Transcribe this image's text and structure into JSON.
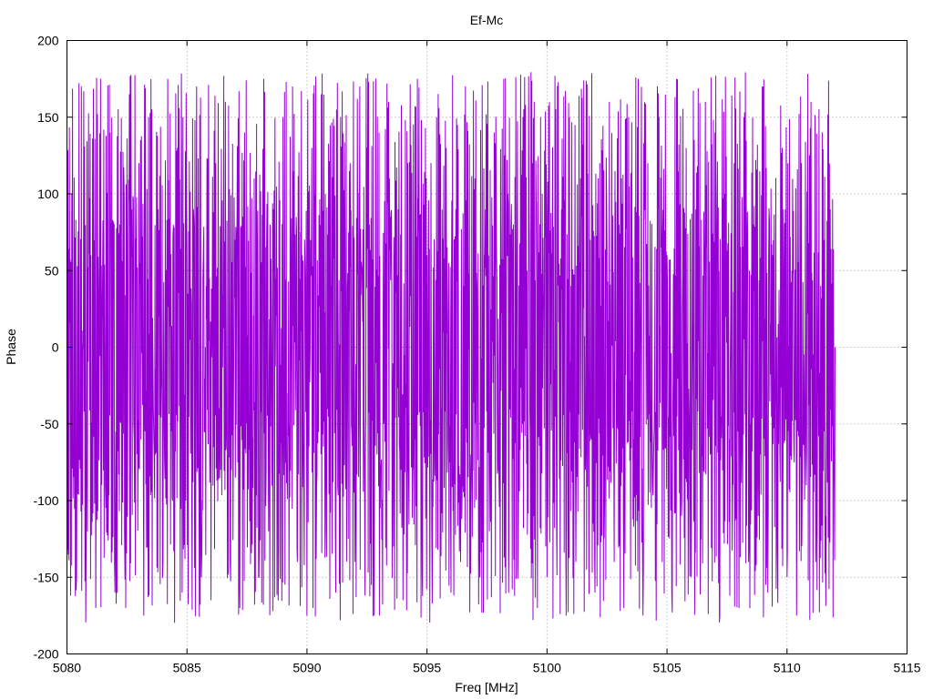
{
  "chart_data": {
    "type": "line",
    "title": "Ef-Mc",
    "xlabel": "Freq [MHz]",
    "ylabel": "Phase",
    "xlim": [
      5080,
      5115
    ],
    "ylim": [
      -200,
      200
    ],
    "xticks": [
      5080,
      5085,
      5090,
      5095,
      5100,
      5105,
      5110,
      5115
    ],
    "yticks": [
      -200,
      -150,
      -100,
      -50,
      0,
      50,
      100,
      150,
      200
    ],
    "grid": true,
    "series": [
      {
        "color": "#9400d3",
        "x_range": [
          5080,
          5112
        ],
        "description_points": "dense wrapped phase oscillating between about -180 and 180",
        "x": [
          5080.0,
          5080.2,
          5080.4,
          5080.6,
          5080.8,
          5081.0,
          5081.2,
          5081.4,
          5081.6,
          5081.8,
          5082.0,
          5082.2,
          5082.4,
          5082.6,
          5082.8,
          5083.0,
          5083.2,
          5083.4,
          5083.6,
          5083.8,
          5084.0,
          5084.2,
          5084.4,
          5084.6,
          5084.8,
          5085.0,
          5085.2,
          5085.4,
          5085.6,
          5085.8,
          5086.0,
          5086.2,
          5086.4,
          5086.6,
          5086.8,
          5087.0,
          5087.2,
          5087.4,
          5087.6,
          5087.8,
          5088.0,
          5088.2,
          5088.4,
          5088.6,
          5088.8,
          5089.0,
          5089.2,
          5089.4,
          5089.6,
          5089.8,
          5090.0,
          5090.2,
          5090.4,
          5090.6,
          5090.8,
          5091.0,
          5091.2,
          5091.4,
          5091.6,
          5091.8,
          5092.0,
          5092.2,
          5092.4,
          5092.6,
          5092.8,
          5093.0,
          5093.2,
          5093.4,
          5093.6,
          5093.8,
          5094.0,
          5094.2,
          5094.4,
          5094.6,
          5094.8,
          5095.0,
          5095.2,
          5095.4,
          5095.6,
          5095.8,
          5096.0,
          5096.2,
          5096.4,
          5096.6,
          5096.8,
          5097.0,
          5097.2,
          5097.4,
          5097.6,
          5097.8,
          5098.0,
          5098.2,
          5098.4,
          5098.6,
          5098.8,
          5099.0,
          5099.2,
          5099.4,
          5099.6,
          5099.8,
          5100.0,
          5100.2,
          5100.4,
          5100.6,
          5100.8,
          5101.0,
          5101.2,
          5101.4,
          5101.6,
          5101.8,
          5102.0,
          5102.2,
          5102.4,
          5102.6,
          5102.8,
          5103.0,
          5103.2,
          5103.4,
          5103.6,
          5103.8,
          5104.0,
          5104.2,
          5104.4,
          5104.6,
          5104.8,
          5105.0,
          5105.2,
          5105.4,
          5105.6,
          5105.8,
          5106.0,
          5106.2,
          5106.4,
          5106.6,
          5106.8,
          5107.0,
          5107.2,
          5107.4,
          5107.6,
          5107.8,
          5108.0,
          5108.2,
          5108.4,
          5108.6,
          5108.8,
          5109.0,
          5109.2,
          5109.4,
          5109.6,
          5109.8,
          5110.0,
          5110.2,
          5110.4,
          5110.6,
          5110.8,
          5111.0,
          5111.2,
          5111.4,
          5111.6,
          5111.8,
          5112.0
        ],
        "y": [
          -80,
          100,
          -150,
          170,
          -130,
          60,
          -170,
          175,
          -90,
          140,
          -160,
          80,
          -120,
          165,
          -60,
          120,
          -175,
          150,
          -40,
          90,
          -140,
          175,
          -100,
          130,
          -160,
          60,
          -110,
          170,
          -150,
          40,
          -165,
          120,
          -80,
          160,
          -140,
          70,
          -170,
          140,
          -60,
          110,
          -150,
          175,
          -120,
          90,
          -165,
          150,
          -30,
          170,
          -140,
          60,
          -175,
          130,
          -90,
          165,
          -120,
          40,
          -160,
          150,
          -70,
          120,
          -140,
          170,
          -100,
          80,
          -175,
          140,
          -50,
          160,
          -130,
          90,
          -165,
          120,
          -80,
          175,
          -150,
          60,
          -120,
          150,
          -40,
          130,
          -160,
          90,
          -140,
          170,
          -70,
          110,
          -150,
          60,
          -120,
          140,
          -90,
          175,
          -160,
          80,
          -130,
          150,
          -60,
          120,
          -170,
          100,
          -150,
          60,
          -120,
          90,
          -175,
          40,
          -140,
          110,
          -80,
          70,
          -160,
          120,
          -100,
          160,
          -140,
          80,
          -170,
          150,
          -60,
          175,
          -175,
          120,
          -90,
          170,
          -140,
          60,
          -160,
          175,
          -110,
          130,
          -150,
          90,
          -120,
          160,
          -70,
          140,
          -175,
          100,
          -60,
          120,
          -170,
          150,
          -140,
          80,
          -110,
          170,
          -160,
          60,
          -130,
          130,
          -150,
          50,
          -175,
          120,
          -90,
          160,
          -140,
          40,
          -110,
          90,
          0
        ]
      }
    ]
  }
}
